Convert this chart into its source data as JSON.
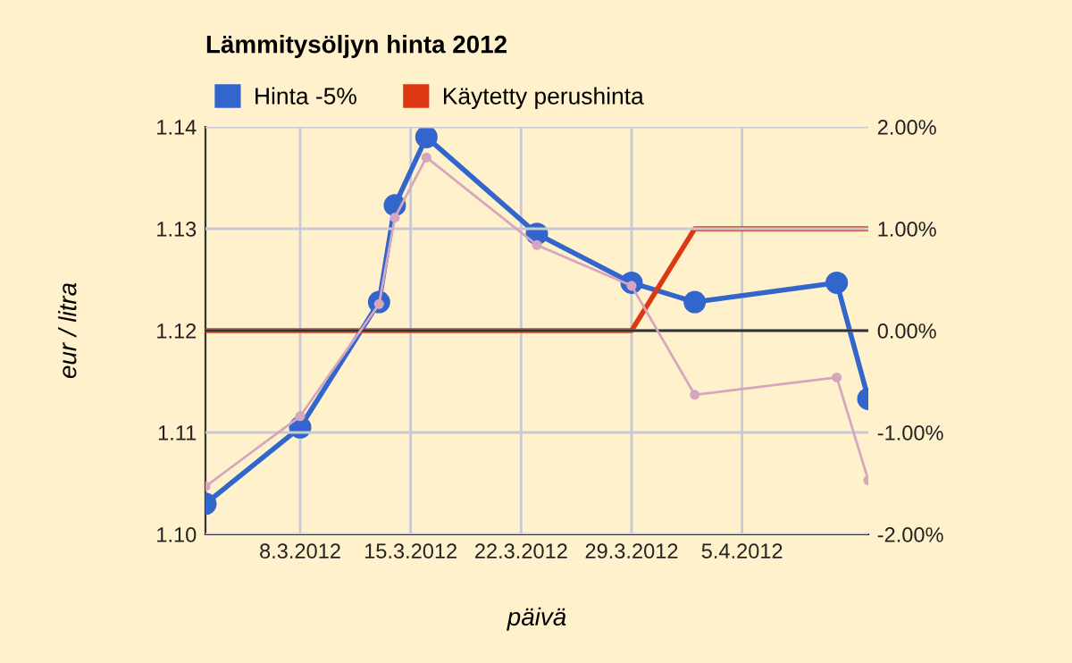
{
  "chart_data": {
    "type": "line",
    "title": "Lämmitysöljyn hinta 2012",
    "xlabel": "päivä",
    "ylabel": "eur / litra",
    "x": [
      "2012-03-02",
      "2012-03-08",
      "2012-03-13",
      "2012-03-14",
      "2012-03-16",
      "2012-03-23",
      "2012-03-29",
      "2012-04-02",
      "2012-04-11",
      "2012-04-13"
    ],
    "series": [
      {
        "name": "Hinta -5%",
        "color": "#3366cc",
        "marker": "circle",
        "values": [
          1.103,
          1.1105,
          1.1228,
          1.1323,
          1.139,
          1.1295,
          1.1247,
          1.1228,
          1.1247,
          1.1133
        ]
      },
      {
        "name": "Käytetty perushinta",
        "color": "#dc3912",
        "marker": "none",
        "values": [
          1.12,
          1.12,
          1.12,
          1.12,
          1.12,
          1.12,
          1.12,
          1.13,
          1.13,
          1.13
        ]
      },
      {
        "color": "#d5a6bd",
        "marker": "circle",
        "axis": "y2",
        "values": [
          -1.53,
          -0.84,
          0.26,
          1.11,
          1.7,
          0.84,
          0.44,
          -0.63,
          -0.46,
          -1.47
        ]
      }
    ],
    "xlim": [
      "2012-03-02",
      "2012-04-13"
    ],
    "xticks": [
      {
        "value": "2012-03-08",
        "label": "8.3.2012"
      },
      {
        "value": "2012-03-15",
        "label": "15.3.2012"
      },
      {
        "value": "2012-03-22",
        "label": "22.3.2012"
      },
      {
        "value": "2012-03-29",
        "label": "29.3.2012"
      },
      {
        "value": "2012-04-05",
        "label": "5.4.2012"
      }
    ],
    "ylim": [
      1.1,
      1.14
    ],
    "yticks": [
      {
        "value": 1.1,
        "label": "1.10"
      },
      {
        "value": 1.11,
        "label": "1.11"
      },
      {
        "value": 1.12,
        "label": "1.12"
      },
      {
        "value": 1.13,
        "label": "1.13"
      },
      {
        "value": 1.14,
        "label": "1.14"
      }
    ],
    "y2lim": [
      -2,
      2
    ],
    "y2ticks": [
      {
        "value": -2,
        "label": "-2.00%"
      },
      {
        "value": -1,
        "label": "-1.00%"
      },
      {
        "value": 0,
        "label": "0.00%"
      },
      {
        "value": 1,
        "label": "1.00%"
      },
      {
        "value": 2,
        "label": "2.00%"
      }
    ],
    "ref_lines": [
      {
        "axis": "y2",
        "value": 0,
        "color": "#333333"
      }
    ],
    "grid": true,
    "legend": "top left"
  }
}
